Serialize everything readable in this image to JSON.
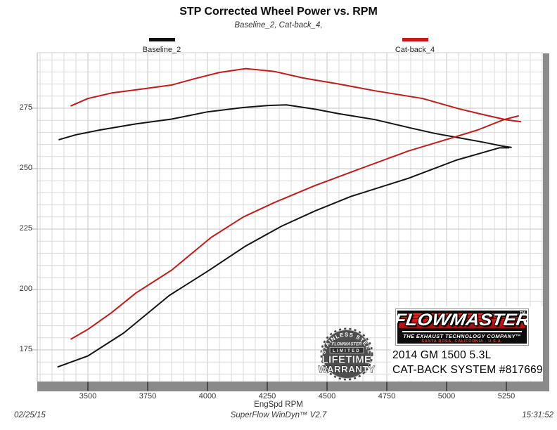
{
  "footer": {
    "date": "02/25/15",
    "software": "SuperFlow WinDyn™ V2.7",
    "time": "15:31:52"
  },
  "overlay": {
    "vehicle_line1": "2014 GM 1500 5.3L",
    "vehicle_line2": "CAT-BACK SYSTEM #817669",
    "logo": {
      "brand": "FLOWMASTER",
      "tm": "TM",
      "tagline": "THE EXHAUST TECHNOLOGY COMPANY™",
      "address": "SANTA ROSA, CALIFORNIA - U.S.A."
    },
    "badge": {
      "arc_top": "STAINLESS STEEL",
      "brand": "FLOWMASTER",
      "band": "LIMITED",
      "line1": "LIFETIME",
      "line2": "WARRANTY"
    }
  },
  "chart_data": {
    "type": "line",
    "title": "STP Corrected Wheel Power vs. RPM",
    "subtitle": "Baseline_2, Cat-back_4,",
    "xlabel": "EngSpd RPM",
    "ylabel": "",
    "x_ticks": [
      3500,
      3750,
      4000,
      4250,
      4500,
      4750,
      5000,
      5250
    ],
    "y_ticks": [
      175,
      200,
      225,
      250,
      275
    ],
    "x_range": [
      3290,
      5400
    ],
    "y_range": [
      162,
      298
    ],
    "grid": {
      "minor_x_step": 50,
      "minor_y_step": 5,
      "major_x_step": 250,
      "major_y_step": 25
    },
    "legend": [
      {
        "label": "Baseline_2",
        "color": "#0d0d0d"
      },
      {
        "label": "Cat-back_4",
        "color": "#c41a1a"
      }
    ],
    "series": [
      {
        "name": "Baseline_2 (upper curve, peaks mid-RPM)",
        "color": "#141414",
        "points": [
          [
            3380,
            262
          ],
          [
            3450,
            264
          ],
          [
            3550,
            266
          ],
          [
            3700,
            268.5
          ],
          [
            3850,
            270.5
          ],
          [
            4000,
            273.5
          ],
          [
            4150,
            275.3
          ],
          [
            4250,
            276.1
          ],
          [
            4330,
            276.4
          ],
          [
            4450,
            274.6
          ],
          [
            4550,
            272.7
          ],
          [
            4700,
            270.3
          ],
          [
            4850,
            266.8
          ],
          [
            4950,
            264.6
          ],
          [
            5050,
            262.8
          ],
          [
            5150,
            261.0
          ],
          [
            5230,
            259.4
          ],
          [
            5270,
            258.8
          ]
        ]
      },
      {
        "name": "Cat-back_4 (upper curve, peaks mid-RPM)",
        "color": "#c41a1a",
        "points": [
          [
            3430,
            276
          ],
          [
            3500,
            279
          ],
          [
            3600,
            281.3
          ],
          [
            3700,
            282.6
          ],
          [
            3850,
            284.6
          ],
          [
            3950,
            287.3
          ],
          [
            4050,
            289.8
          ],
          [
            4160,
            291.4
          ],
          [
            4280,
            290.2
          ],
          [
            4400,
            287.5
          ],
          [
            4550,
            285.0
          ],
          [
            4700,
            282.2
          ],
          [
            4900,
            279.0
          ],
          [
            5050,
            274.8
          ],
          [
            5150,
            272.4
          ],
          [
            5250,
            270.2
          ],
          [
            5310,
            269.4
          ]
        ]
      },
      {
        "name": "Baseline_2 (lower curve, rising)",
        "color": "#141414",
        "points": [
          [
            3375,
            168
          ],
          [
            3500,
            172.5
          ],
          [
            3650,
            182
          ],
          [
            3840,
            197.5
          ],
          [
            4000,
            207.5
          ],
          [
            4160,
            218
          ],
          [
            4310,
            226.2
          ],
          [
            4450,
            232.5
          ],
          [
            4600,
            238.5
          ],
          [
            4840,
            246
          ],
          [
            5040,
            253.5
          ],
          [
            5150,
            256.6
          ],
          [
            5220,
            258.6
          ],
          [
            5260,
            258.6
          ]
        ]
      },
      {
        "name": "Cat-back_4 (lower curve, rising)",
        "color": "#c41a1a",
        "points": [
          [
            3430,
            179.5
          ],
          [
            3500,
            183.5
          ],
          [
            3600,
            190.5
          ],
          [
            3700,
            198.5
          ],
          [
            3850,
            208
          ],
          [
            4015,
            221.5
          ],
          [
            4150,
            230
          ],
          [
            4280,
            236
          ],
          [
            4450,
            243
          ],
          [
            4640,
            250
          ],
          [
            4840,
            257.3
          ],
          [
            4985,
            261.6
          ],
          [
            5130,
            266
          ],
          [
            5240,
            270.3
          ],
          [
            5300,
            271.8
          ]
        ]
      }
    ]
  }
}
